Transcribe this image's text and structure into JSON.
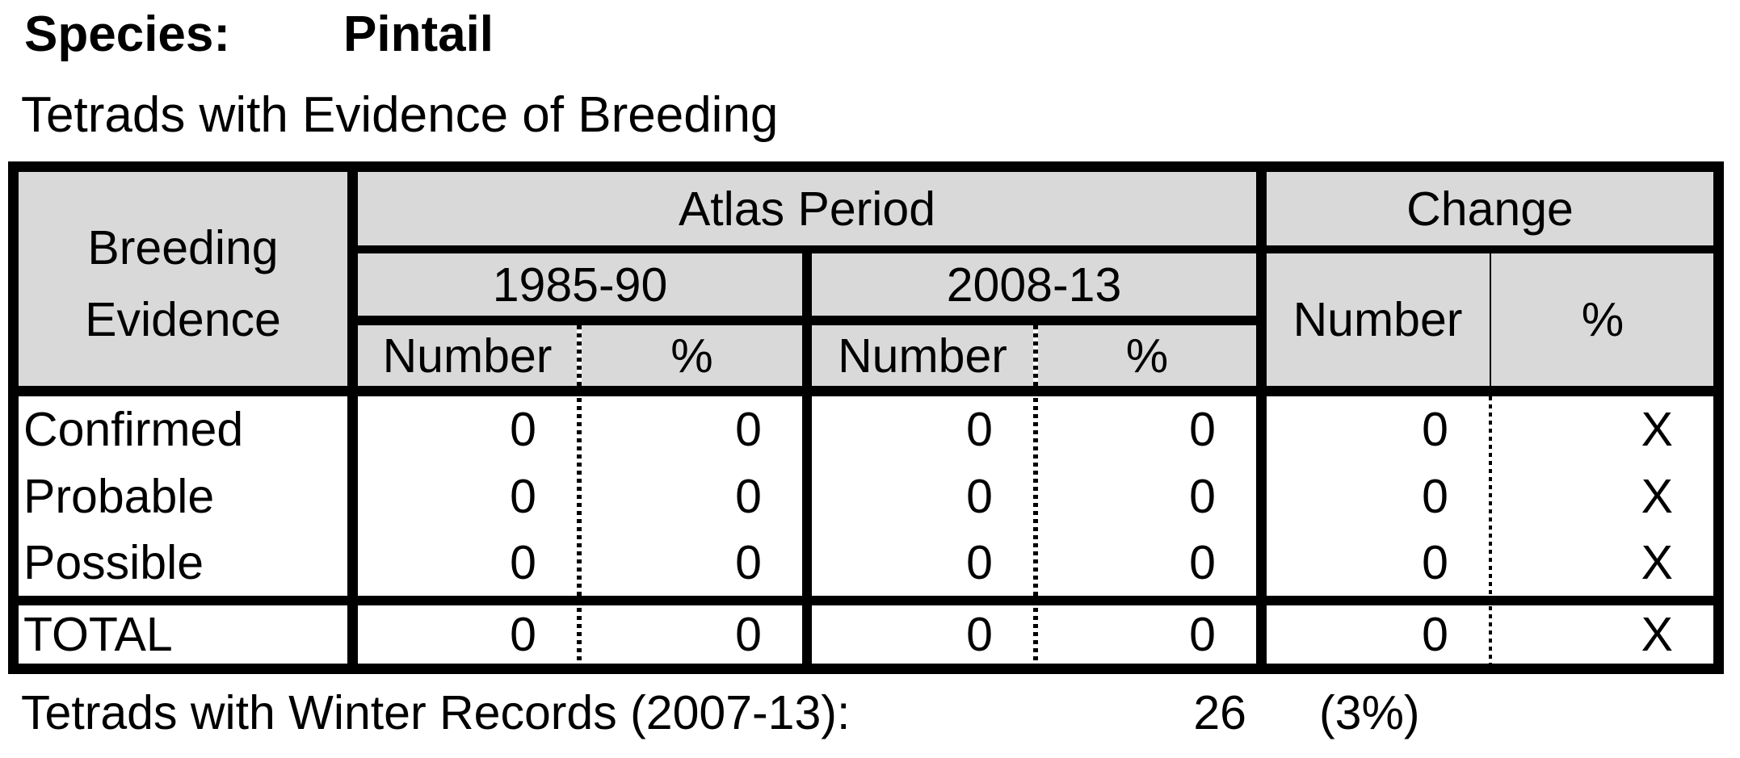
{
  "page": {
    "species_label": "Species:",
    "species_value": "Pintail",
    "table_title": "Tetrads with Evidence of Breeding",
    "winter_records_label": "Tetrads with Winter Records (2007-13):",
    "winter_records_count": "26",
    "winter_records_pct": "(3%)"
  },
  "table": {
    "header": {
      "row_group_line1": "Breeding",
      "row_group_line2": "Evidence",
      "atlas_period": "Atlas Period",
      "change": "Change",
      "period1": "1985-90",
      "period2": "2008-13",
      "number_label": "Number",
      "percent_label": "%"
    },
    "rows": [
      {
        "label": "Confirmed",
        "p1_number": "0",
        "p1_pct": "0",
        "p2_number": "0",
        "p2_pct": "0",
        "change_number": "0",
        "change_pct": "X"
      },
      {
        "label": "Probable",
        "p1_number": "0",
        "p1_pct": "0",
        "p2_number": "0",
        "p2_pct": "0",
        "change_number": "0",
        "change_pct": "X"
      },
      {
        "label": "Possible",
        "p1_number": "0",
        "p1_pct": "0",
        "p2_number": "0",
        "p2_pct": "0",
        "change_number": "0",
        "change_pct": "X"
      },
      {
        "label": "TOTAL",
        "p1_number": "0",
        "p1_pct": "0",
        "p2_number": "0",
        "p2_pct": "0",
        "change_number": "0",
        "change_pct": "X"
      }
    ],
    "colors": {
      "header_bg": "#d9d9d9",
      "border": "#000000",
      "page_bg": "#ffffff"
    }
  }
}
